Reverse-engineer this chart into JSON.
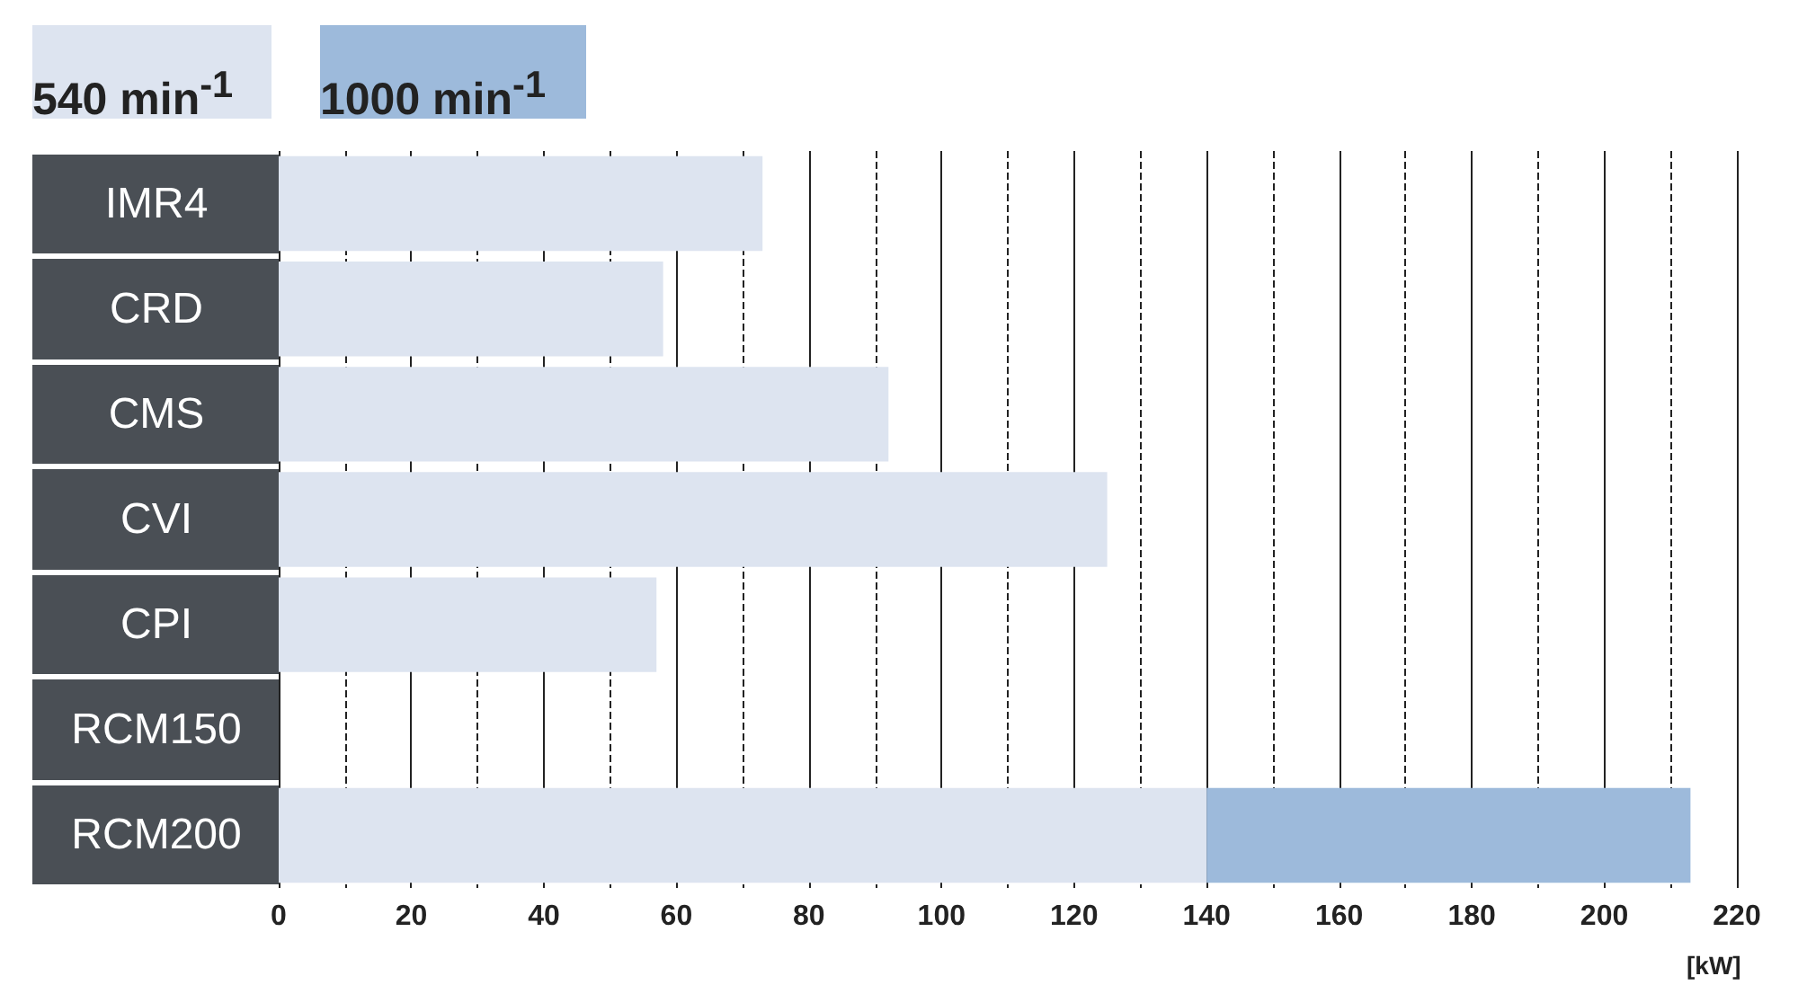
{
  "chart_data": {
    "type": "bar",
    "orientation": "horizontal",
    "stacked": true,
    "categories": [
      "IMR4",
      "CRD",
      "CMS",
      "CVI",
      "CPI",
      "RCM150",
      "RCM200"
    ],
    "series": [
      {
        "name": "540 min$^{-1}$",
        "color": "#dde4f0",
        "values": [
          73,
          58,
          92,
          125,
          57,
          null,
          140
        ]
      },
      {
        "name": "1000 min$^{-1}$",
        "color": "#9dbadb",
        "values": [
          null,
          null,
          null,
          null,
          null,
          null,
          73
        ]
      }
    ],
    "xlabel": "[kW]",
    "xlim": [
      0,
      220
    ],
    "xticks": [
      0,
      20,
      40,
      60,
      80,
      100,
      120,
      140,
      160,
      180,
      200,
      220
    ],
    "grid": "x",
    "legend": "top left"
  }
}
